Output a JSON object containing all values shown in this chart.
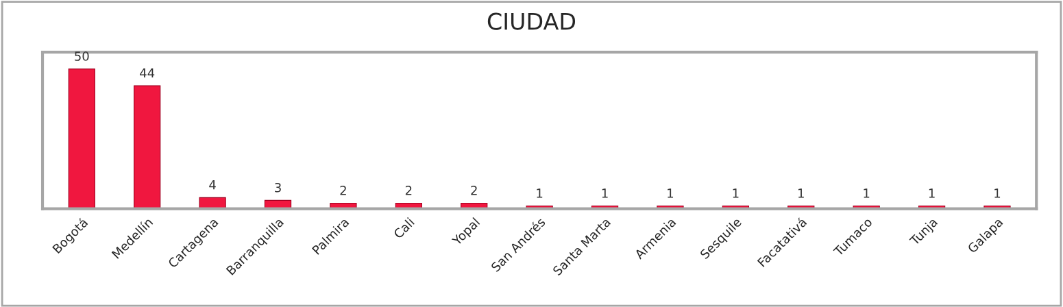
{
  "chart_data": {
    "type": "bar",
    "title": "CIUDAD",
    "categories": [
      "Bogotá",
      "Medellín",
      "Cartagena",
      "Barranquilla",
      "Palmira",
      "Cali",
      "Yopal",
      "San Andrés",
      "Santa Marta",
      "Armenia",
      "Sesquile",
      "Facatativá",
      "Tumaco",
      "Tunja",
      "Galapa"
    ],
    "values": [
      50,
      44,
      4,
      3,
      2,
      2,
      2,
      1,
      1,
      1,
      1,
      1,
      1,
      1,
      1
    ],
    "color": "#f0173f",
    "data_labels": true,
    "grid": false,
    "legend": false,
    "tick_labels": "x"
  }
}
